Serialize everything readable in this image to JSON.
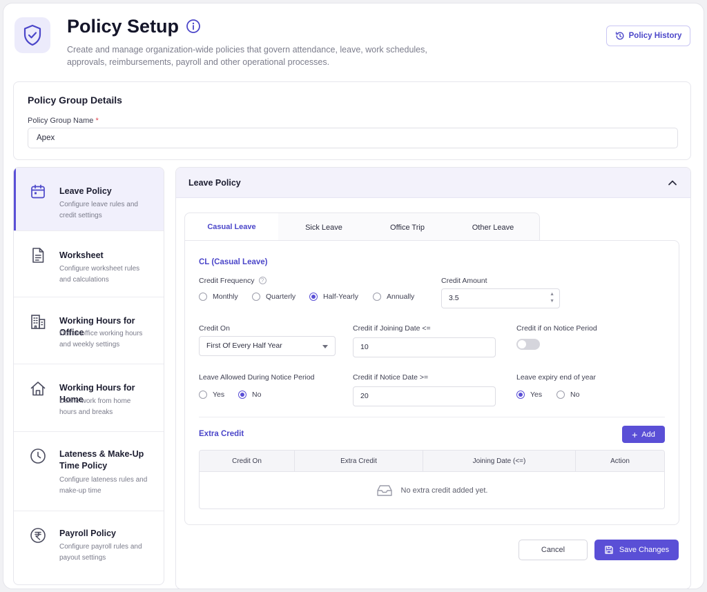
{
  "header": {
    "title": "Policy Setup",
    "description": "Create and manage organization-wide policies that govern attendance, leave, work schedules, approvals, reimbursements, payroll and other operational processes.",
    "history_button": "Policy History"
  },
  "group": {
    "title": "Policy Group Details",
    "name_label": "Policy Group Name",
    "required_mark": "*",
    "name_value": "Apex"
  },
  "sidebar": {
    "items": [
      {
        "title": "Leave Policy",
        "desc": "Configure leave rules and credit settings",
        "icon": "calendar-icon"
      },
      {
        "title": "Worksheet",
        "desc": "Configure worksheet rules and calculations",
        "icon": "document-icon"
      },
      {
        "title": "Working Hours for Office",
        "desc": "Define office working hours and weekly settings",
        "icon": "building-icon"
      },
      {
        "title": "Working Hours for Home",
        "desc": "Define work from home hours and breaks",
        "icon": "home-icon"
      },
      {
        "title": "Lateness & Make-Up Time Policy",
        "desc": "Configure lateness rules and make-up time",
        "icon": "clock-icon"
      },
      {
        "title": "Payroll Policy",
        "desc": "Configure payroll rules and payout settings",
        "icon": "rupee-icon"
      }
    ]
  },
  "panel": {
    "title": "Leave Policy",
    "tabs": [
      "Casual Leave",
      "Sick Leave",
      "Office Trip",
      "Other Leave"
    ],
    "active_tab": "Casual Leave"
  },
  "form": {
    "section_title": "CL (Casual Leave)",
    "credit_frequency": {
      "label": "Credit Frequency",
      "options": [
        "Monthly",
        "Quarterly",
        "Half-Yearly",
        "Annually"
      ],
      "selected": "Half-Yearly"
    },
    "credit_amount": {
      "label": "Credit Amount",
      "value": "3.5"
    },
    "credit_on": {
      "label": "Credit On",
      "value": "First Of Every Half Year"
    },
    "credit_joining": {
      "label": "Credit if Joining Date <=",
      "value": "10"
    },
    "credit_notice": {
      "label": "Credit if on Notice Period",
      "enabled": false
    },
    "leave_during_notice": {
      "label": "Leave Allowed During Notice Period",
      "options": [
        "Yes",
        "No"
      ],
      "selected": "No"
    },
    "credit_notice_date": {
      "label": "Credit if Notice Date >=",
      "value": "20"
    },
    "leave_expiry": {
      "label": "Leave expiry end of year",
      "options": [
        "Yes",
        "No"
      ],
      "selected": "Yes"
    }
  },
  "extra_credit": {
    "title": "Extra Credit",
    "add_label": "Add",
    "columns": [
      "Credit On",
      "Extra Credit",
      "Joining Date (<=)",
      "Action"
    ],
    "empty_text": "No extra credit added yet."
  },
  "actions": {
    "cancel": "Cancel",
    "save": "Save Changes"
  },
  "colors": {
    "accent": "#5a4fd6",
    "accent_text": "#4b46c9",
    "required": "#e0454f"
  }
}
